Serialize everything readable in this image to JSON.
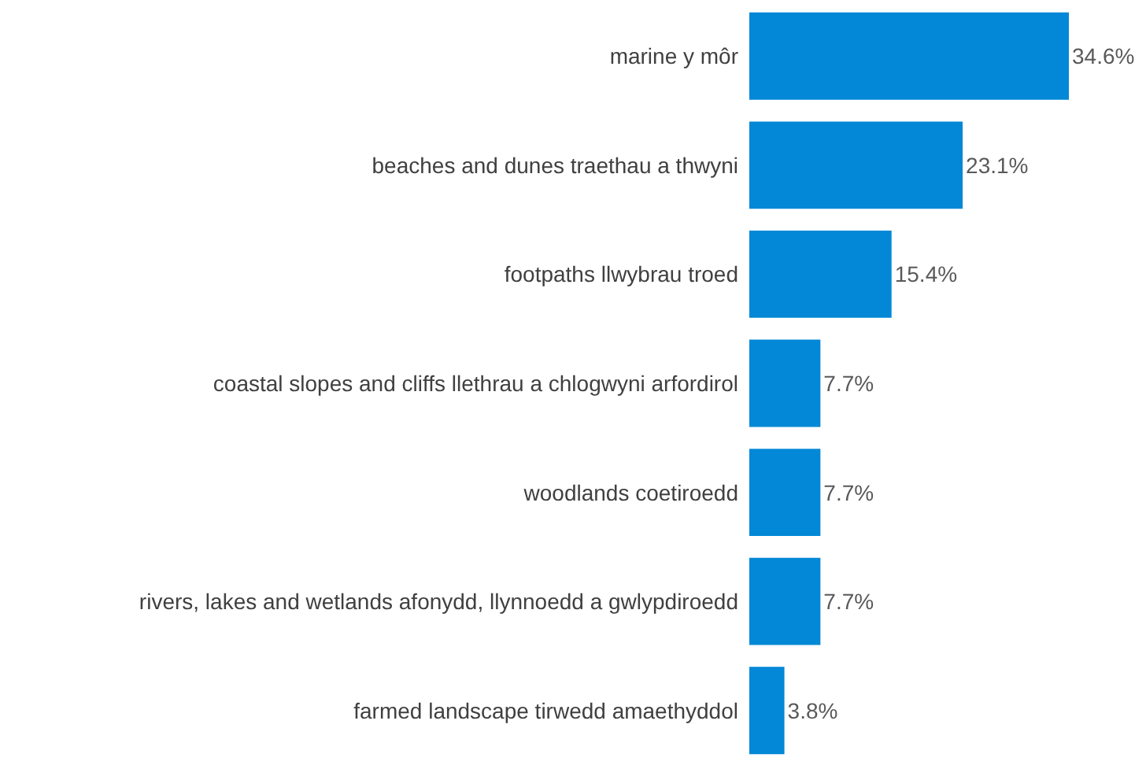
{
  "chart_data": {
    "type": "bar",
    "orientation": "horizontal",
    "categories": [
      "marine y môr",
      "beaches and dunes traethau a thwyni",
      "footpaths llwybrau troed",
      "coastal slopes and cliffs llethrau a chlogwyni arfordirol",
      "woodlands coetiroedd",
      "rivers, lakes and wetlands afonydd, llynnoedd a gwlypdiroedd",
      "farmed landscape tirwedd amaethyddol"
    ],
    "values": [
      34.6,
      23.1,
      15.4,
      7.7,
      7.7,
      7.7,
      3.8
    ],
    "value_labels": [
      "34.6%",
      "23.1%",
      "15.4%",
      "7.7%",
      "7.7%",
      "7.7%",
      "3.8%"
    ],
    "color": "#0288d6"
  }
}
